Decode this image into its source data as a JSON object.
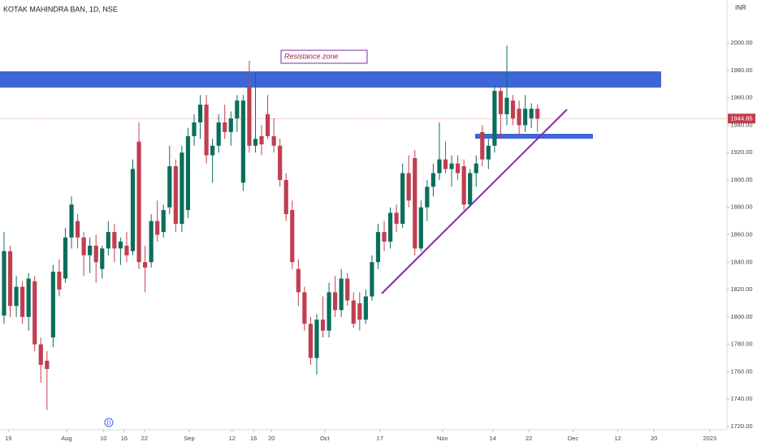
{
  "chart_data": {
    "type": "candlestick",
    "title": "KOTAK MAHINDRA BAN, 1D, NSE",
    "currency": "INR",
    "annotations": [
      "Resistance zone"
    ],
    "event_marker": "D",
    "up_color": "#0b6e5c",
    "down_color": "#bf3f50",
    "ohlc": [
      [
        1801,
        1862,
        1795,
        1848
      ],
      [
        1848,
        1852,
        1800,
        1808
      ],
      [
        1808,
        1830,
        1800,
        1822
      ],
      [
        1822,
        1826,
        1795,
        1800
      ],
      [
        1800,
        1832,
        1790,
        1828
      ],
      [
        1826,
        1830,
        1775,
        1780
      ],
      [
        1780,
        1785,
        1752,
        1765
      ],
      [
        1768,
        1775,
        1732,
        1762
      ],
      [
        1785,
        1838,
        1778,
        1833
      ],
      [
        1833,
        1842,
        1815,
        1820
      ],
      [
        1828,
        1865,
        1825,
        1858
      ],
      [
        1858,
        1888,
        1850,
        1882
      ],
      [
        1870,
        1875,
        1850,
        1858
      ],
      [
        1858,
        1862,
        1830,
        1845
      ],
      [
        1845,
        1858,
        1832,
        1852
      ],
      [
        1852,
        1860,
        1825,
        1840
      ],
      [
        1835,
        1852,
        1828,
        1850
      ],
      [
        1850,
        1870,
        1845,
        1862
      ],
      [
        1862,
        1868,
        1840,
        1850
      ],
      [
        1850,
        1858,
        1838,
        1855
      ],
      [
        1852,
        1862,
        1840,
        1845
      ],
      [
        1848,
        1915,
        1845,
        1908
      ],
      [
        1928,
        1942,
        1835,
        1840
      ],
      [
        1840,
        1852,
        1818,
        1836
      ],
      [
        1840,
        1875,
        1836,
        1870
      ],
      [
        1870,
        1885,
        1855,
        1860
      ],
      [
        1862,
        1882,
        1858,
        1878
      ],
      [
        1880,
        1925,
        1875,
        1910
      ],
      [
        1910,
        1915,
        1862,
        1868
      ],
      [
        1868,
        1925,
        1862,
        1920
      ],
      [
        1878,
        1938,
        1872,
        1932
      ],
      [
        1932,
        1948,
        1925,
        1942
      ],
      [
        1942,
        1962,
        1930,
        1955
      ],
      [
        1955,
        1962,
        1912,
        1918
      ],
      [
        1918,
        1930,
        1898,
        1925
      ],
      [
        1925,
        1948,
        1920,
        1942
      ],
      [
        1942,
        1955,
        1930,
        1935
      ],
      [
        1935,
        1950,
        1925,
        1945
      ],
      [
        1945,
        1962,
        1935,
        1958
      ],
      [
        1898,
        1962,
        1892,
        1958
      ],
      [
        1968,
        1987,
        1920,
        1925
      ],
      [
        1925,
        1978,
        1920,
        1930
      ],
      [
        1932,
        1940,
        1918,
        1926
      ],
      [
        1948,
        1962,
        1930,
        1932
      ],
      [
        1932,
        1945,
        1920,
        1925
      ],
      [
        1925,
        1930,
        1895,
        1900
      ],
      [
        1900,
        1905,
        1870,
        1875
      ],
      [
        1878,
        1885,
        1835,
        1840
      ],
      [
        1835,
        1842,
        1808,
        1818
      ],
      [
        1818,
        1822,
        1790,
        1795
      ],
      [
        1795,
        1800,
        1765,
        1770
      ],
      [
        1770,
        1802,
        1758,
        1798
      ],
      [
        1798,
        1815,
        1785,
        1790
      ],
      [
        1790,
        1825,
        1785,
        1818
      ],
      [
        1818,
        1830,
        1800,
        1805
      ],
      [
        1805,
        1835,
        1800,
        1828
      ],
      [
        1828,
        1832,
        1808,
        1812
      ],
      [
        1812,
        1818,
        1792,
        1795
      ],
      [
        1810,
        1818,
        1790,
        1798
      ],
      [
        1798,
        1820,
        1795,
        1815
      ],
      [
        1815,
        1845,
        1812,
        1840
      ],
      [
        1840,
        1868,
        1835,
        1862
      ],
      [
        1862,
        1870,
        1848,
        1855
      ],
      [
        1855,
        1880,
        1850,
        1876
      ],
      [
        1876,
        1882,
        1862,
        1868
      ],
      [
        1868,
        1912,
        1865,
        1905
      ],
      [
        1905,
        1918,
        1880,
        1885
      ],
      [
        1916,
        1922,
        1845,
        1850
      ],
      [
        1850,
        1885,
        1848,
        1880
      ],
      [
        1880,
        1900,
        1870,
        1895
      ],
      [
        1895,
        1912,
        1888,
        1905
      ],
      [
        1905,
        1942,
        1900,
        1915
      ],
      [
        1915,
        1928,
        1905,
        1908
      ],
      [
        1908,
        1918,
        1895,
        1912
      ],
      [
        1912,
        1918,
        1900,
        1905
      ],
      [
        1910,
        1915,
        1878,
        1882
      ],
      [
        1882,
        1908,
        1880,
        1905
      ],
      [
        1905,
        1918,
        1895,
        1912
      ],
      [
        1935,
        1940,
        1910,
        1915
      ],
      [
        1915,
        1930,
        1908,
        1925
      ],
      [
        1925,
        1970,
        1920,
        1965
      ],
      [
        1965,
        1968,
        1930,
        1948
      ],
      [
        1948,
        1998,
        1940,
        1960
      ],
      [
        1958,
        1962,
        1940,
        1945
      ],
      [
        1952,
        1958,
        1932,
        1940
      ],
      [
        1940,
        1962,
        1935,
        1952
      ],
      [
        1945,
        1956,
        1938,
        1952
      ],
      [
        1952,
        1955,
        1935,
        1944.85
      ]
    ],
    "xlim": [
      -0.66,
      117.9
    ],
    "xticks": [
      {
        "value": 0.7,
        "label": "19"
      },
      {
        "value": 10.2,
        "label": "Aug"
      },
      {
        "value": 16.2,
        "label": "10"
      },
      {
        "value": 19.6,
        "label": "16"
      },
      {
        "value": 22.9,
        "label": "22"
      },
      {
        "value": 30.2,
        "label": "Sep"
      },
      {
        "value": 37.2,
        "label": "12"
      },
      {
        "value": 40.7,
        "label": "16"
      },
      {
        "value": 43.6,
        "label": "20"
      },
      {
        "value": 52.3,
        "label": "Oct"
      },
      {
        "value": 61.3,
        "label": "17"
      },
      {
        "value": 71.5,
        "label": "Nov"
      },
      {
        "value": 79.7,
        "label": "14"
      },
      {
        "value": 85.6,
        "label": "22"
      },
      {
        "value": 92.8,
        "label": "Dec"
      },
      {
        "value": 100.1,
        "label": "12"
      },
      {
        "value": 106,
        "label": "20"
      },
      {
        "value": 115.1,
        "label": "2023"
      }
    ],
    "ylim": [
      1717.6,
      2031.4
    ],
    "yticks": [
      {
        "value": 1720,
        "label": "1720.00"
      },
      {
        "value": 1740,
        "label": "1740.00"
      },
      {
        "value": 1760,
        "label": "1760.00"
      },
      {
        "value": 1780,
        "label": "1780.00"
      },
      {
        "value": 1800,
        "label": "1800.00"
      },
      {
        "value": 1820,
        "label": "1820.00"
      },
      {
        "value": 1840,
        "label": "1840.00"
      },
      {
        "value": 1860,
        "label": "1860.00"
      },
      {
        "value": 1880,
        "label": "1880.00"
      },
      {
        "value": 1900,
        "label": "1900.00"
      },
      {
        "value": 1920,
        "label": "1920.00"
      },
      {
        "value": 1940,
        "label": "1940.00"
      },
      {
        "value": 1960,
        "label": "1960.00"
      },
      {
        "value": 1980,
        "label": "1980.00"
      },
      {
        "value": 2000,
        "label": "2000.00"
      }
    ]
  }
}
